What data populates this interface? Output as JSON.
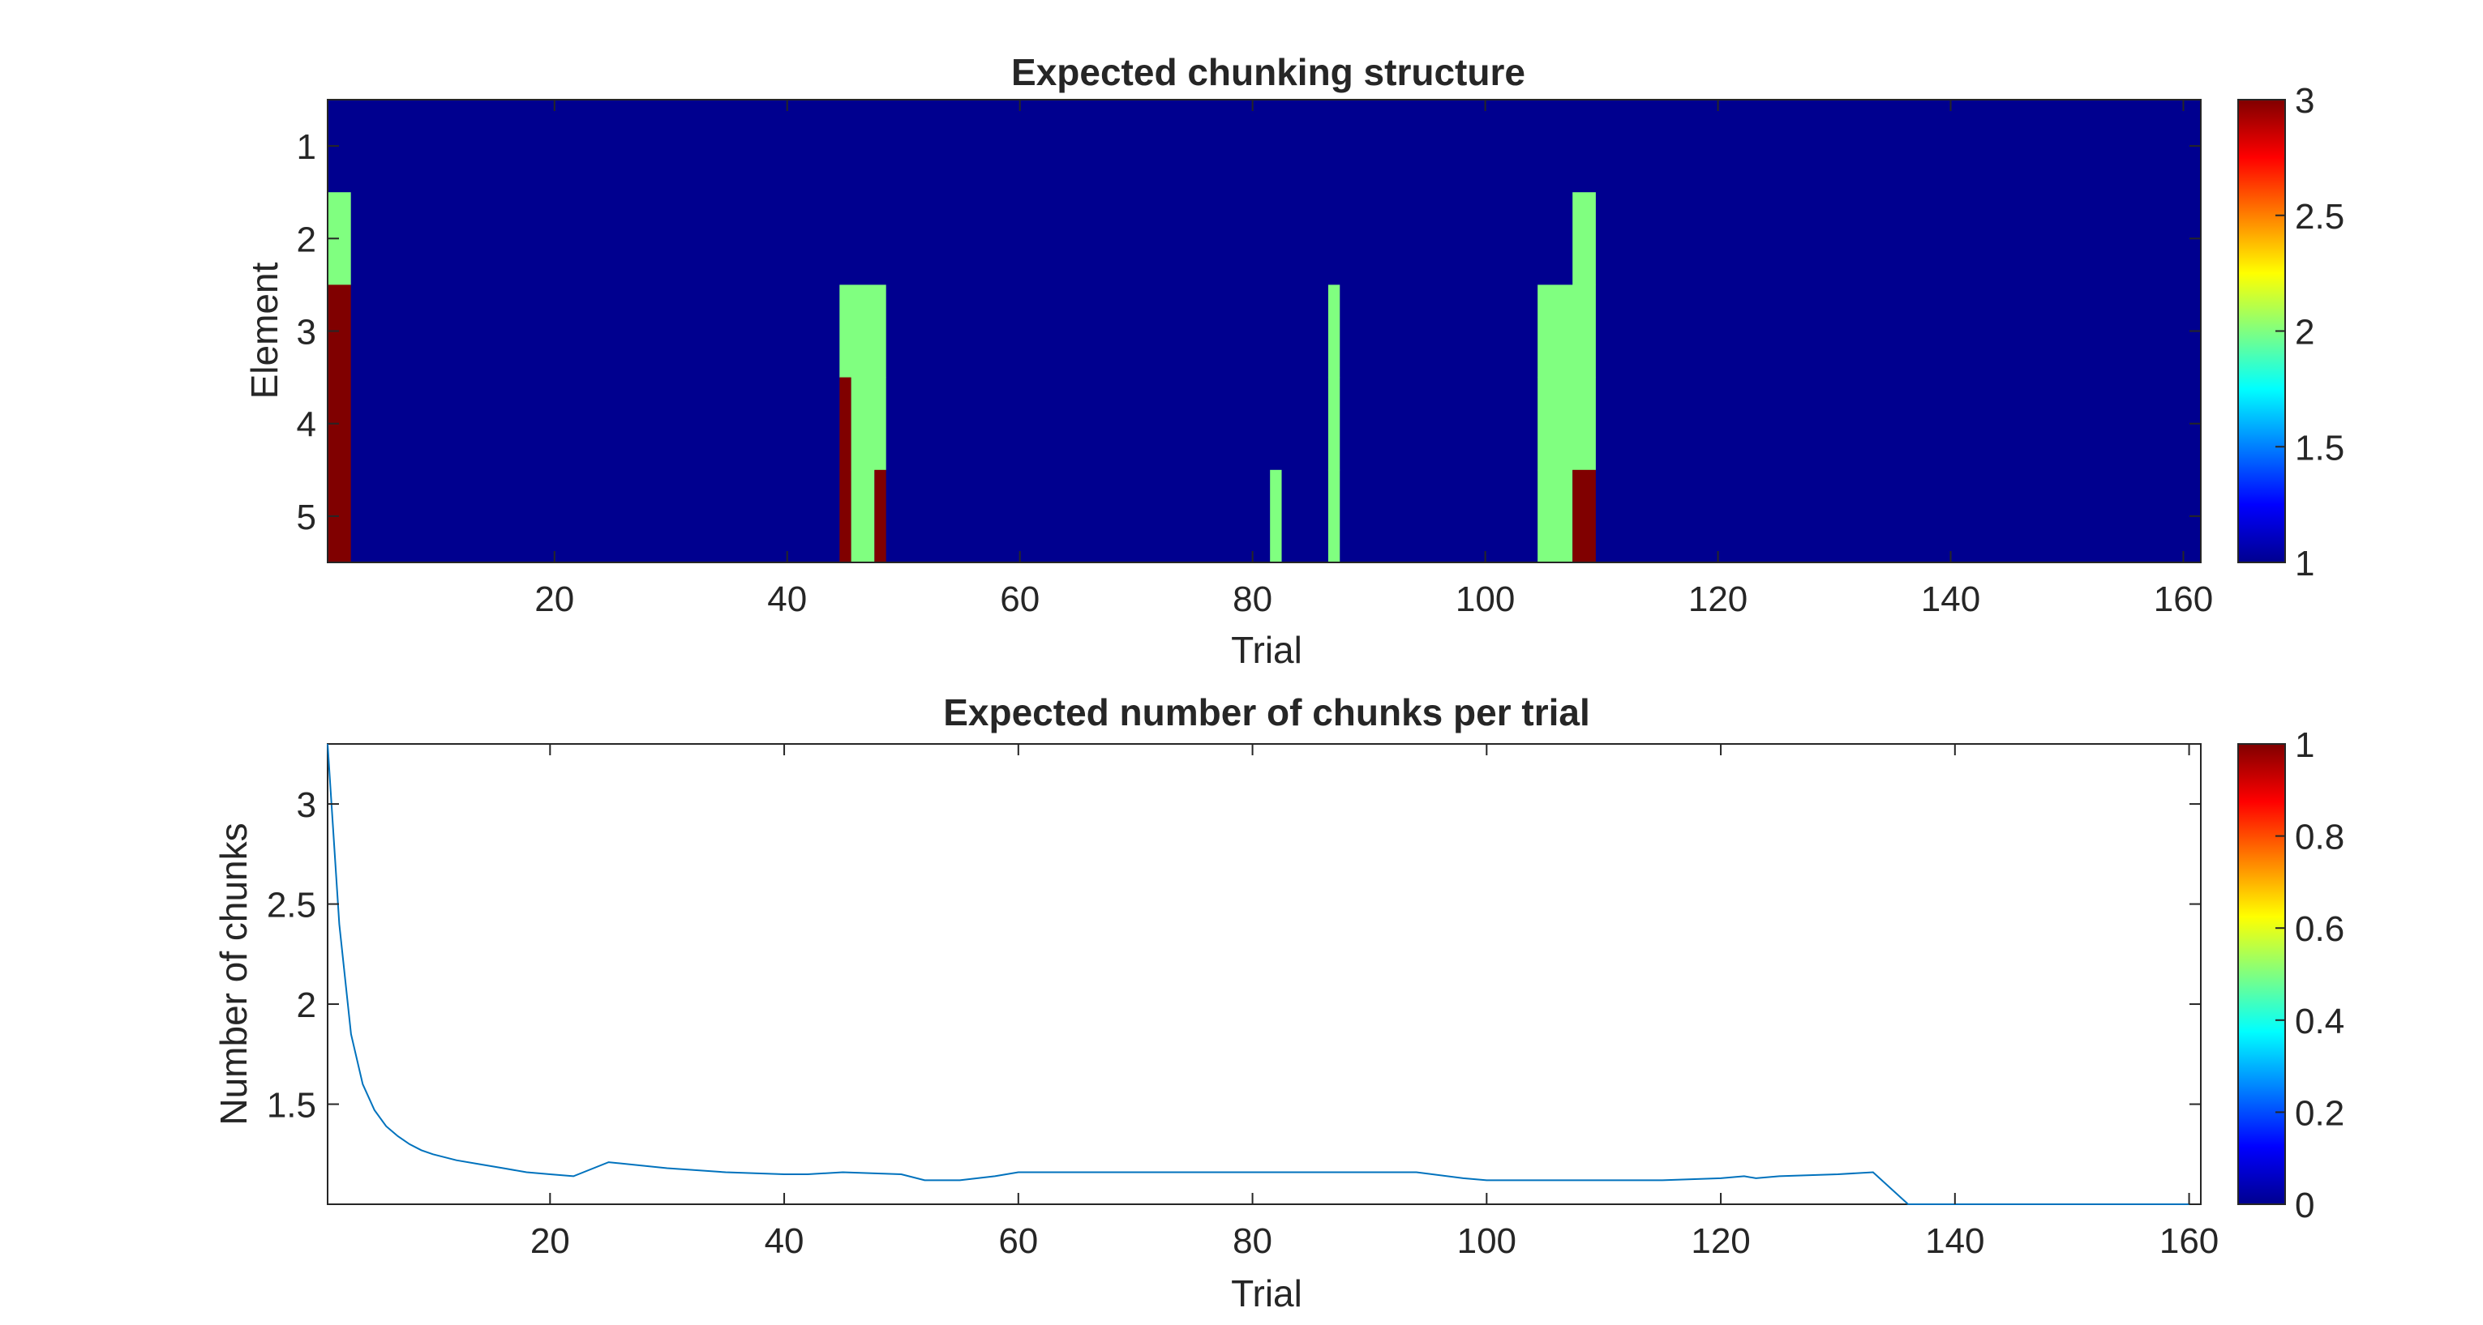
{
  "chart_data": [
    {
      "type": "heatmap",
      "title": "Expected chunking structure",
      "xlabel": "Trial",
      "ylabel": "Element",
      "xlim": [
        0.5,
        161.5
      ],
      "xticks": [
        20,
        40,
        60,
        80,
        100,
        120,
        140,
        160
      ],
      "rows": [
        1,
        2,
        3,
        4,
        5
      ],
      "yticks": [
        1,
        2,
        3,
        4,
        5
      ],
      "clim": [
        1,
        3
      ],
      "colorbar_ticks": [
        1,
        1.5,
        2,
        2.5,
        3
      ],
      "colormap": "jet",
      "background_value": 1,
      "cells": [
        {
          "row": 2,
          "x0": 1,
          "x1": 2,
          "value": 2
        },
        {
          "row": 3,
          "x0": 1,
          "x1": 2,
          "value": 3
        },
        {
          "row": 4,
          "x0": 1,
          "x1": 2,
          "value": 3
        },
        {
          "row": 5,
          "x0": 1,
          "x1": 2,
          "value": 3
        },
        {
          "row": 3,
          "x0": 45,
          "x1": 48,
          "value": 2
        },
        {
          "row": 4,
          "x0": 45,
          "x1": 45,
          "value": 3
        },
        {
          "row": 4,
          "x0": 46,
          "x1": 48,
          "value": 2
        },
        {
          "row": 5,
          "x0": 45,
          "x1": 45,
          "value": 3
        },
        {
          "row": 5,
          "x0": 46,
          "x1": 47,
          "value": 2
        },
        {
          "row": 5,
          "x0": 48,
          "x1": 48,
          "value": 3
        },
        {
          "row": 5,
          "x0": 82,
          "x1": 82,
          "value": 2
        },
        {
          "row": 3,
          "x0": 87,
          "x1": 87,
          "value": 2
        },
        {
          "row": 4,
          "x0": 87,
          "x1": 87,
          "value": 2
        },
        {
          "row": 5,
          "x0": 87,
          "x1": 87,
          "value": 2
        },
        {
          "row": 2,
          "x0": 108,
          "x1": 109,
          "value": 2
        },
        {
          "row": 3,
          "x0": 105,
          "x1": 109,
          "value": 2
        },
        {
          "row": 4,
          "x0": 105,
          "x1": 109,
          "value": 2
        },
        {
          "row": 5,
          "x0": 105,
          "x1": 107,
          "value": 2
        },
        {
          "row": 5,
          "x0": 108,
          "x1": 109,
          "value": 3
        }
      ]
    },
    {
      "type": "line",
      "title": "Expected number of chunks per trial",
      "xlabel": "Trial",
      "ylabel": "Number of chunks",
      "xlim": [
        1,
        161
      ],
      "ylim": [
        1,
        3.3
      ],
      "xticks": [
        20,
        40,
        60,
        80,
        100,
        120,
        140,
        160
      ],
      "yticks": [
        1.5,
        2,
        2.5,
        3
      ],
      "line_color": "#0072BD",
      "colorbar_ticks": [
        0,
        0.2,
        0.4,
        0.6,
        0.8,
        1
      ],
      "colormap": "jet",
      "x": [
        1,
        2,
        3,
        4,
        5,
        6,
        7,
        8,
        9,
        10,
        12,
        14,
        16,
        18,
        20,
        22,
        25,
        30,
        35,
        40,
        42,
        45,
        50,
        52,
        55,
        58,
        60,
        70,
        80,
        90,
        94,
        98,
        100,
        105,
        110,
        115,
        120,
        122,
        123,
        125,
        130,
        133,
        136,
        140,
        150,
        160
      ],
      "y": [
        3.3,
        2.4,
        1.85,
        1.6,
        1.47,
        1.39,
        1.34,
        1.3,
        1.27,
        1.25,
        1.22,
        1.2,
        1.18,
        1.16,
        1.15,
        1.14,
        1.21,
        1.18,
        1.16,
        1.15,
        1.15,
        1.16,
        1.15,
        1.12,
        1.12,
        1.14,
        1.16,
        1.16,
        1.16,
        1.16,
        1.16,
        1.13,
        1.12,
        1.12,
        1.12,
        1.12,
        1.13,
        1.14,
        1.13,
        1.14,
        1.15,
        1.16,
        1.0,
        1.0,
        1.0,
        1.0
      ]
    }
  ]
}
